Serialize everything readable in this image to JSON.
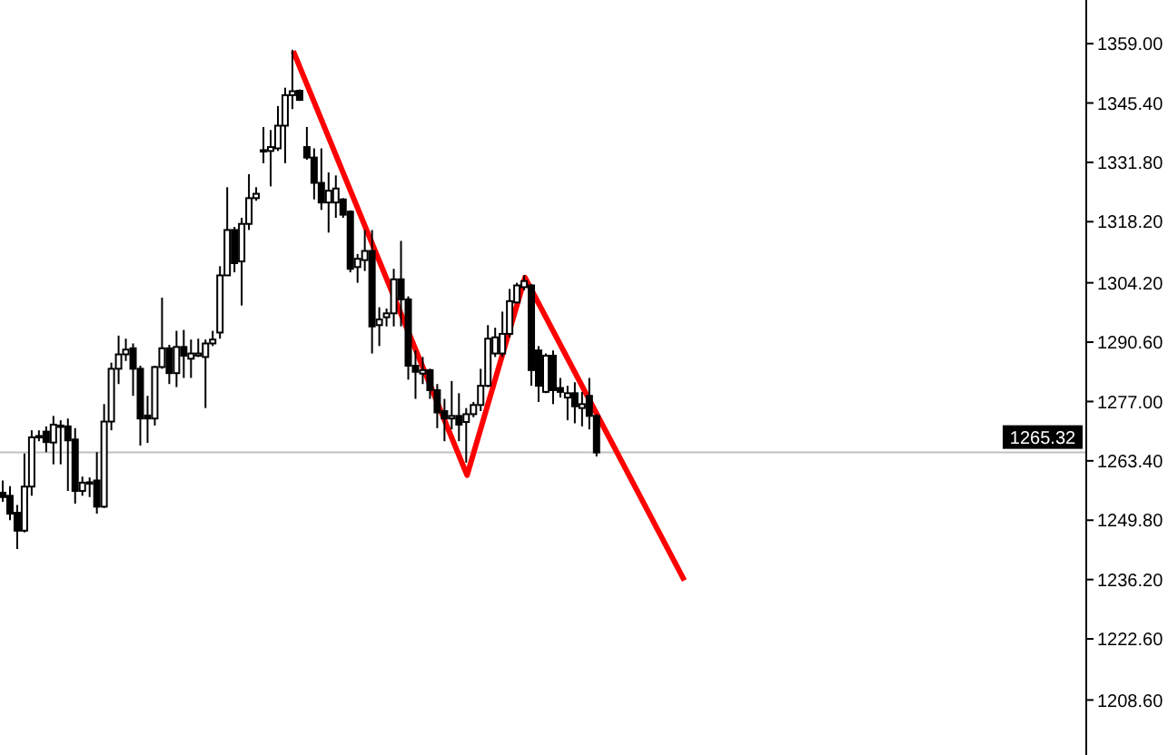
{
  "chart_data": {
    "type": "candlestick",
    "categories": [
      null,
      null,
      null,
      null,
      null,
      null,
      null,
      null,
      null,
      null,
      null,
      null,
      null,
      null,
      null,
      null,
      null,
      null,
      null,
      null,
      null,
      null,
      null,
      null,
      null,
      null,
      null,
      null,
      null,
      null,
      null,
      null,
      null,
      null,
      null,
      null,
      null,
      null,
      null,
      null,
      null,
      null,
      null,
      null,
      null,
      null,
      null,
      null,
      null,
      null,
      null,
      null,
      null,
      null,
      null,
      null,
      null,
      null,
      null,
      null,
      null,
      null,
      null,
      null,
      null,
      null,
      null,
      null,
      null,
      null,
      null,
      null,
      null,
      null,
      null,
      null,
      null,
      null,
      null,
      null,
      null,
      null,
      null,
      null,
      null,
      null,
      null,
      null,
      null,
      null,
      null,
      null,
      null,
      null,
      null,
      null,
      null,
      null,
      null,
      null,
      null,
      null,
      null,
      null,
      null,
      null,
      null,
      null,
      null,
      null,
      null,
      null,
      null,
      null,
      null,
      null,
      null,
      null,
      null,
      null,
      null,
      null,
      null,
      null,
      null,
      null,
      null,
      null,
      null,
      null,
      null,
      null,
      null,
      null,
      null,
      null,
      null,
      null,
      null,
      null,
      null,
      null,
      null,
      null,
      null,
      null,
      null,
      null,
      null,
      null
    ],
    "series": [
      {
        "color": "#000000",
        "ohlc": [
          [
            1256.1,
            1258.9,
            1254.0,
            1255.1
          ],
          [
            1255.4,
            1257.6,
            1249.8,
            1251.3
          ],
          [
            1251.5,
            1253.3,
            1243.2,
            1247.4
          ],
          [
            1247.4,
            1265.1,
            1247.0,
            1257.5
          ],
          [
            1257.5,
            1270.4,
            1255.4,
            1268.8
          ],
          [
            1269.1,
            1270.4,
            1267.9,
            1269.0
          ],
          [
            1270.1,
            1271.3,
            1265.4,
            1267.7
          ],
          [
            1267.6,
            1273.7,
            1262.6,
            1271.7
          ],
          [
            1271.5,
            1272.7,
            1262.6,
            1271.4
          ],
          [
            1271.3,
            1273.1,
            1256.5,
            1268.1
          ],
          [
            1268.3,
            1270.9,
            1253.6,
            1256.5
          ],
          [
            1256.5,
            1259.8,
            1255.4,
            1258.4
          ],
          [
            1258.4,
            1259.6,
            1255.1,
            1258.5
          ],
          [
            1258.9,
            1265.4,
            1251.3,
            1252.9
          ],
          [
            1252.9,
            1276.4,
            1252.6,
            1272.4
          ],
          [
            1272.4,
            1285.9,
            1270.4,
            1284.5
          ],
          [
            1284.5,
            1292.1,
            1281.0,
            1287.8
          ],
          [
            1287.8,
            1291.4,
            1286.3,
            1288.9
          ],
          [
            1289.2,
            1290.3,
            1278.3,
            1284.5
          ],
          [
            1284.5,
            1285.2,
            1266.9,
            1273.1
          ],
          [
            1273.8,
            1278.3,
            1267.5,
            1273.1
          ],
          [
            1273.1,
            1285.2,
            1271.5,
            1284.9
          ],
          [
            1284.9,
            1300.8,
            1284.5,
            1289.2
          ],
          [
            1289.2,
            1290.0,
            1281.0,
            1283.5
          ],
          [
            1283.5,
            1293.2,
            1280.3,
            1289.5
          ],
          [
            1289.5,
            1293.4,
            1282.4,
            1287.5
          ],
          [
            1286.8,
            1291.2,
            1282.4,
            1288.0
          ],
          [
            1287.5,
            1291.4,
            1287.2,
            1288.0
          ],
          [
            1287.2,
            1291.2,
            1275.5,
            1290.3
          ],
          [
            1290.3,
            1293.2,
            1289.7,
            1291.2
          ],
          [
            1292.8,
            1308.0,
            1291.4,
            1305.9
          ],
          [
            1305.9,
            1326.1,
            1305.8,
            1316.3
          ],
          [
            1316.3,
            1317.0,
            1306.6,
            1308.7
          ],
          [
            1309.1,
            1319.1,
            1299.0,
            1317.7
          ],
          [
            1317.7,
            1329.1,
            1316.3,
            1323.6
          ],
          [
            1323.6,
            1326.1,
            1323.0,
            1324.6
          ],
          [
            1334.4,
            1339.9,
            1331.6,
            1334.6
          ],
          [
            1334.4,
            1339.2,
            1326.3,
            1335.3
          ],
          [
            1335.0,
            1344.7,
            1334.4,
            1340.2
          ],
          [
            1340.2,
            1348.9,
            1331.6,
            1347.2
          ],
          [
            1347.2,
            1357.6,
            1344.0,
            1348.1
          ],
          [
            1348.2,
            1348.5,
            1345.9,
            1346.1
          ],
          [
            1335.3,
            1339.9,
            1332.4,
            1332.9
          ],
          [
            1332.9,
            1335.0,
            1323.3,
            1327.1
          ],
          [
            1327.1,
            1335.0,
            1320.9,
            1322.6
          ],
          [
            1322.6,
            1329.5,
            1315.7,
            1325.3
          ],
          [
            1322.6,
            1328.8,
            1319.1,
            1325.8
          ],
          [
            1323.3,
            1323.6,
            1319.1,
            1319.8
          ],
          [
            1320.5,
            1320.8,
            1306.6,
            1307.4
          ],
          [
            1307.8,
            1310.8,
            1304.2,
            1309.7
          ],
          [
            1309.4,
            1316.3,
            1306.9,
            1311.5
          ],
          [
            1311.5,
            1316.3,
            1288.0,
            1294.2
          ],
          [
            1294.5,
            1298.6,
            1289.7,
            1295.8
          ],
          [
            1296.3,
            1298.3,
            1294.2,
            1297.2
          ],
          [
            1297.2,
            1307.4,
            1294.2,
            1305.0
          ],
          [
            1305.0,
            1313.8,
            1294.2,
            1300.4
          ],
          [
            1300.4,
            1301.1,
            1282.0,
            1285.2
          ],
          [
            1285.2,
            1288.7,
            1277.6,
            1283.8
          ],
          [
            1283.4,
            1287.2,
            1281.0,
            1284.2
          ],
          [
            1284.2,
            1284.5,
            1277.6,
            1279.6
          ],
          [
            1279.6,
            1281.0,
            1270.9,
            1274.5
          ],
          [
            1274.8,
            1277.6,
            1267.9,
            1273.1
          ],
          [
            1273.1,
            1281.7,
            1270.6,
            1273.7
          ],
          [
            1273.7,
            1278.9,
            1267.9,
            1271.7
          ],
          [
            1272.3,
            1275.5,
            1263.0,
            1274.1
          ],
          [
            1274.1,
            1276.9,
            1273.4,
            1276.2
          ],
          [
            1276.2,
            1284.5,
            1274.8,
            1280.6
          ],
          [
            1280.6,
            1294.5,
            1280.3,
            1291.4
          ],
          [
            1288.0,
            1293.9,
            1287.2,
            1291.7
          ],
          [
            1288.0,
            1297.6,
            1287.2,
            1292.5
          ],
          [
            1292.5,
            1302.8,
            1291.7,
            1300.0
          ],
          [
            1299.7,
            1304.2,
            1299.5,
            1303.6
          ],
          [
            1303.2,
            1305.9,
            1302.5,
            1304.6
          ],
          [
            1303.6,
            1303.9,
            1280.6,
            1284.2
          ],
          [
            1288.7,
            1289.7,
            1276.9,
            1280.6
          ],
          [
            1279.2,
            1288.0,
            1278.9,
            1287.5
          ],
          [
            1287.5,
            1288.7,
            1276.4,
            1279.6
          ],
          [
            1280.1,
            1282.4,
            1277.9,
            1279.2
          ],
          [
            1277.9,
            1280.6,
            1272.7,
            1278.9
          ],
          [
            1278.9,
            1281.4,
            1272.0,
            1275.9
          ],
          [
            1275.5,
            1279.2,
            1271.3,
            1276.4
          ],
          [
            1278.3,
            1282.4,
            1270.6,
            1273.7
          ],
          [
            1273.7,
            1274.1,
            1264.4,
            1265.32
          ],
          null,
          null,
          null,
          null,
          null,
          null,
          null,
          null,
          null,
          null,
          null,
          null,
          null,
          null,
          null,
          null,
          null,
          null,
          null,
          null,
          null,
          null,
          null,
          null,
          null,
          null,
          null,
          null,
          null,
          null,
          null,
          null,
          null,
          null,
          null,
          null,
          null,
          null,
          null,
          null,
          null,
          null,
          null,
          null,
          null,
          null,
          null,
          null,
          null,
          null,
          null,
          null,
          null,
          null,
          null,
          null,
          null,
          null,
          null,
          null,
          null,
          null,
          null,
          null,
          null,
          null,
          null
        ]
      },
      {
        "type": "line",
        "color": "#ff0000",
        "values": [
          null,
          null,
          null,
          null,
          null,
          null,
          null,
          null,
          null,
          null,
          null,
          null,
          null,
          null,
          null,
          null,
          null,
          null,
          null,
          null,
          null,
          null,
          null,
          null,
          null,
          null,
          null,
          null,
          null,
          null,
          null,
          null,
          null,
          null,
          null,
          null,
          null,
          null,
          null,
          null,
          1357.3,
          null,
          null,
          null,
          null,
          null,
          null,
          null,
          null,
          null,
          null,
          null,
          null,
          null,
          null,
          null,
          null,
          null,
          null,
          null,
          null,
          null,
          null,
          null,
          1260.1,
          null,
          null,
          null,
          null,
          null,
          null,
          null,
          1305.4,
          null,
          null,
          null,
          null,
          null,
          null,
          null,
          null,
          null,
          null,
          null,
          null,
          null,
          null,
          null,
          null,
          null,
          null,
          null,
          null,
          null,
          1236.0,
          null,
          null,
          null,
          null,
          null,
          null,
          null,
          null,
          null,
          null,
          null,
          null,
          null,
          null,
          null,
          null,
          null,
          null,
          null,
          null,
          null,
          null,
          null,
          null,
          null,
          null,
          null,
          null,
          null,
          null,
          null,
          null,
          null,
          null,
          null,
          null,
          null,
          null,
          null,
          null,
          null,
          null,
          null,
          null,
          null,
          null,
          null,
          null,
          null,
          null,
          null,
          null,
          null,
          null,
          null
        ]
      }
    ],
    "ylim": [
      1196,
      1369
    ],
    "yticks": [
      {
        "value": 1359,
        "label": "1359.00"
      },
      {
        "value": 1345.4,
        "label": "1345.40"
      },
      {
        "value": 1331.8,
        "label": "1331.80"
      },
      {
        "value": 1318.2,
        "label": "1318.20"
      },
      {
        "value": 1304.2,
        "label": "1304.20"
      },
      {
        "value": 1290.6,
        "label": "1290.60"
      },
      {
        "value": 1277,
        "label": "1277.00"
      },
      {
        "value": 1263.4,
        "label": "1263.40"
      },
      {
        "value": 1249.8,
        "label": "1249.80"
      },
      {
        "value": 1236.2,
        "label": "1236.20"
      },
      {
        "value": 1222.6,
        "label": "1222.60"
      },
      {
        "value": 1208.6,
        "label": "1208.60"
      }
    ],
    "ref_lines": [
      {
        "axis": "y",
        "value": 1265.32,
        "label": "1265.32",
        "color": "#c0c0c0"
      }
    ],
    "tick_labels": "y",
    "grid": false,
    "legend": false
  }
}
